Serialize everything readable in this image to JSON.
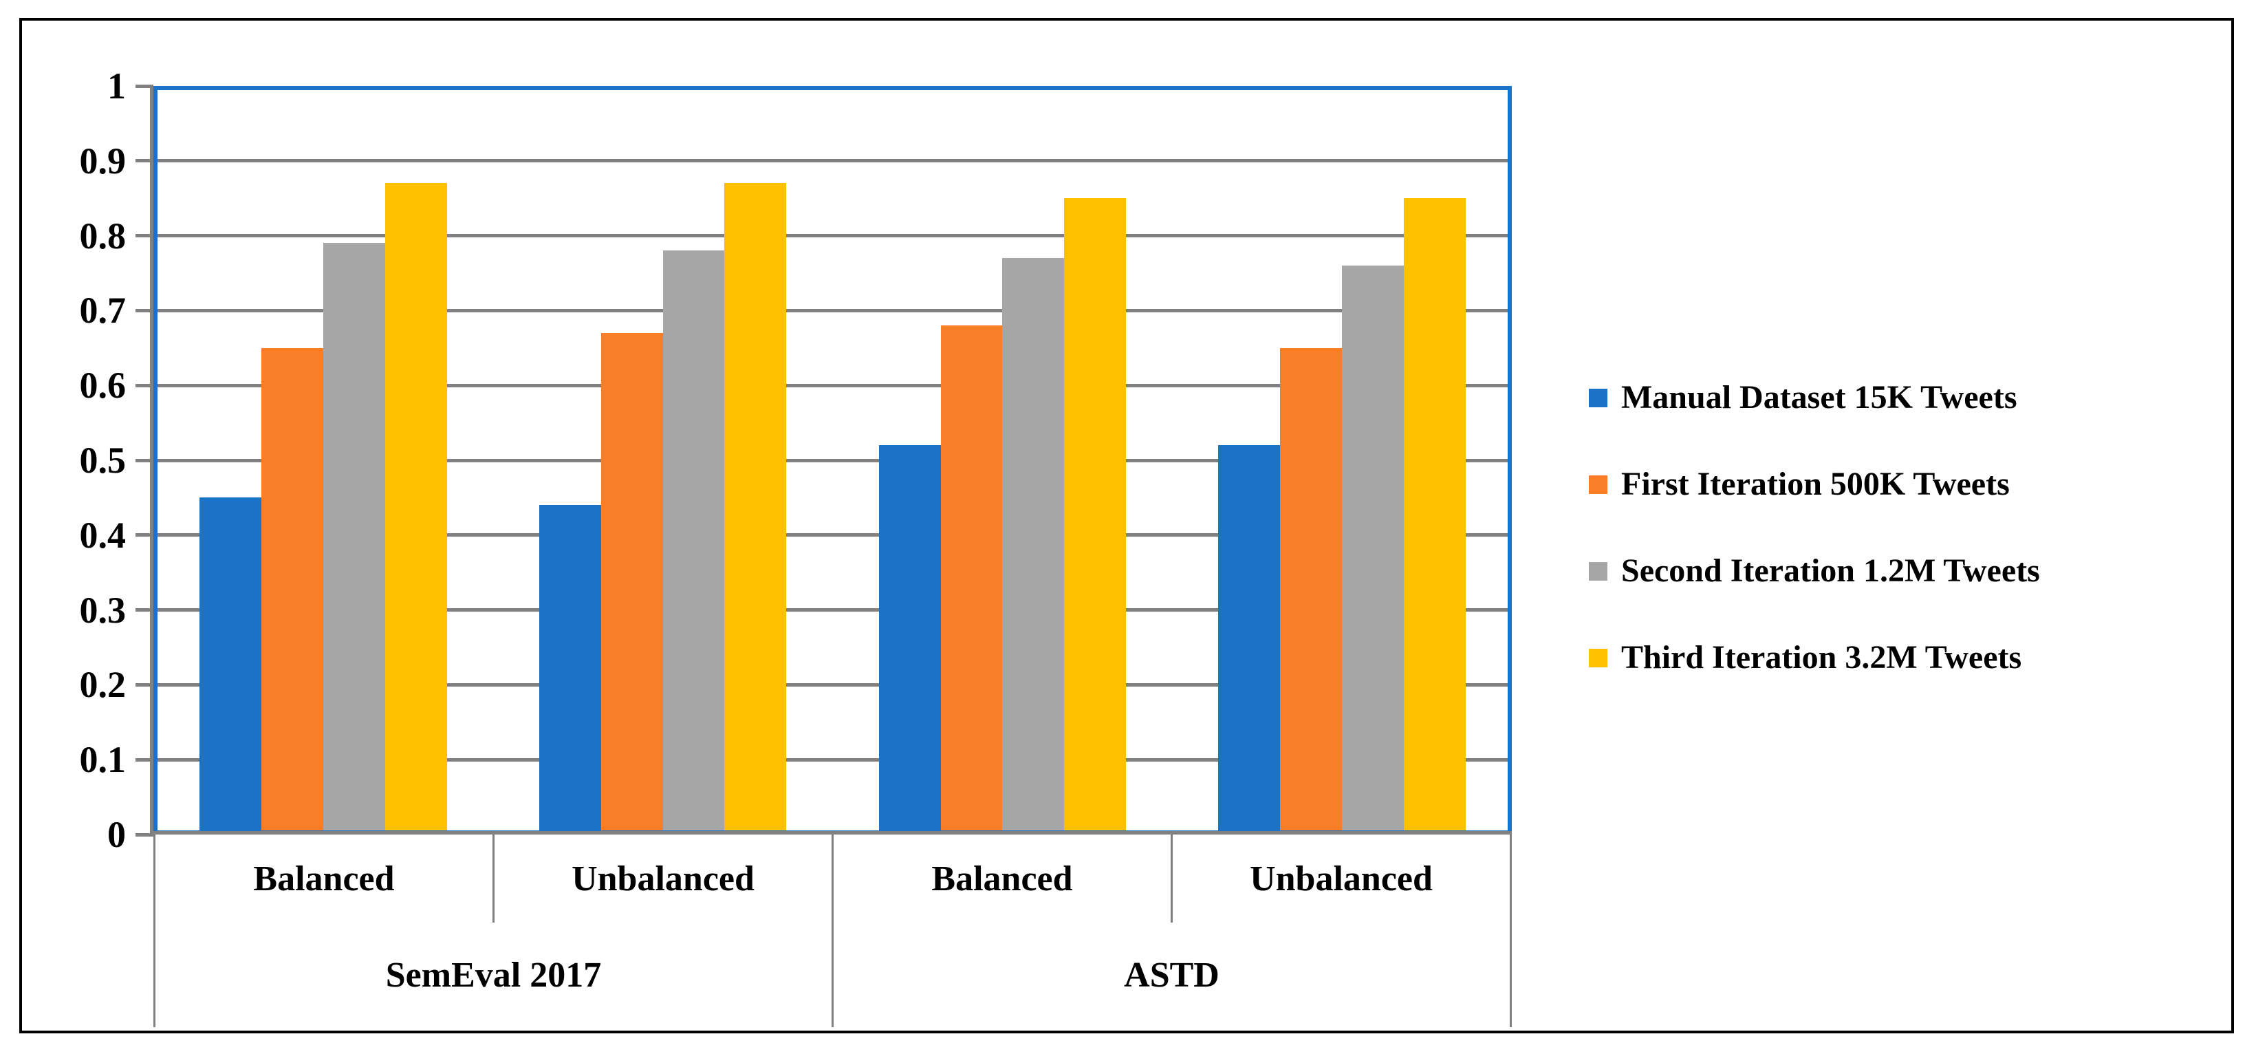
{
  "chart_data": {
    "type": "bar",
    "title": "",
    "xlabel": "",
    "ylabel": "",
    "ylim": [
      0,
      1
    ],
    "y_tick_step": 0.1,
    "grid": true,
    "legend_position": "right",
    "y_ticks": [
      "1",
      "0.9",
      "0.8",
      "0.7",
      "0.6",
      "0.5",
      "0.4",
      "0.3",
      "0.2",
      "0.1",
      "0"
    ],
    "categories": [
      "Balanced",
      "Unbalanced",
      "Balanced",
      "Unbalanced"
    ],
    "category_groups": [
      {
        "label": "SemEval 2017",
        "span": 2
      },
      {
        "label": "ASTD",
        "span": 2
      }
    ],
    "series": [
      {
        "name": "Manual Dataset 15K Tweets",
        "color": "#1B73C8",
        "values": [
          0.45,
          0.44,
          0.52,
          0.52
        ]
      },
      {
        "name": "First Iteration 500K Tweets",
        "color": "#FA7D28",
        "values": [
          0.65,
          0.67,
          0.68,
          0.65
        ]
      },
      {
        "name": "Second Iteration 1.2M Tweets",
        "color": "#A6A6A6",
        "values": [
          0.79,
          0.78,
          0.77,
          0.76
        ]
      },
      {
        "name": "Third Iteration 3.2M Tweets",
        "color": "#FFC000",
        "values": [
          0.87,
          0.87,
          0.85,
          0.85
        ]
      }
    ]
  },
  "styles": {
    "plot_border_color": "#1B73C8",
    "gridline_color": "#808080",
    "axis_table_line_color": "#808080",
    "frame_border_color": "#000000",
    "background": "#FFFFFF",
    "text_color": "#000000"
  }
}
